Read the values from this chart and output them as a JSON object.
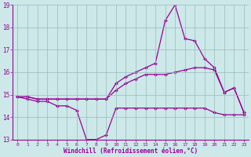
{
  "xlabel": "Windchill (Refroidissement éolien,°C)",
  "background_color": "#cce8e8",
  "grid_color": "#99bbbb",
  "line_color": "#990099",
  "xlim": [
    -0.5,
    23.5
  ],
  "ylim": [
    13,
    19
  ],
  "yticks": [
    13,
    14,
    15,
    16,
    17,
    18,
    19
  ],
  "xticks": [
    0,
    1,
    2,
    3,
    4,
    5,
    6,
    7,
    8,
    9,
    10,
    11,
    12,
    13,
    14,
    15,
    16,
    17,
    18,
    19,
    20,
    21,
    22,
    23
  ],
  "series1_x": [
    0,
    1,
    2,
    3,
    4,
    5,
    6,
    7,
    8,
    9,
    10,
    11,
    12,
    13,
    14,
    15,
    16,
    17,
    18,
    19,
    20,
    21,
    22,
    23
  ],
  "series1_y": [
    14.9,
    14.8,
    14.7,
    14.7,
    14.5,
    14.5,
    14.3,
    13.0,
    13.0,
    13.2,
    14.4,
    14.4,
    14.4,
    14.4,
    14.4,
    14.4,
    14.4,
    14.4,
    14.4,
    14.4,
    14.2,
    14.1,
    14.1,
    14.1
  ],
  "series2_x": [
    0,
    1,
    2,
    3,
    4,
    5,
    6,
    7,
    8,
    9,
    10,
    11,
    12,
    13,
    14,
    15,
    16,
    17,
    18,
    19,
    20,
    21,
    22,
    23
  ],
  "series2_y": [
    14.9,
    14.9,
    14.8,
    14.8,
    14.8,
    14.8,
    14.8,
    14.8,
    14.8,
    14.8,
    15.2,
    15.5,
    15.7,
    15.9,
    15.9,
    15.9,
    16.0,
    16.1,
    16.2,
    16.2,
    16.1,
    15.1,
    15.3,
    14.2
  ],
  "series3_x": [
    0,
    1,
    2,
    3,
    4,
    5,
    6,
    7,
    8,
    9,
    10,
    11,
    12,
    13,
    14,
    15,
    16,
    17,
    18,
    19,
    20,
    21,
    22,
    23
  ],
  "series3_y": [
    14.9,
    14.9,
    14.8,
    14.8,
    14.8,
    14.8,
    14.8,
    14.8,
    14.8,
    14.8,
    15.5,
    15.8,
    16.0,
    16.2,
    16.4,
    18.3,
    19.0,
    17.5,
    17.4,
    16.6,
    16.2,
    15.1,
    15.3,
    14.2
  ]
}
